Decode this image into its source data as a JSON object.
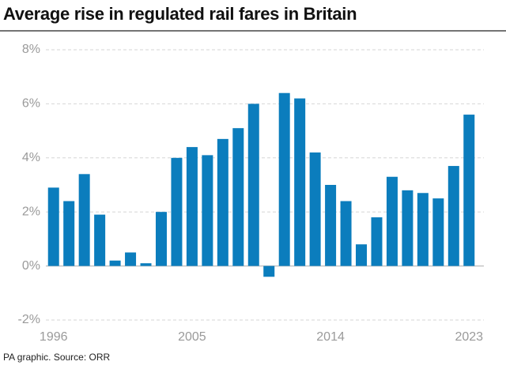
{
  "chart_data": {
    "type": "bar",
    "title": "Average rise in regulated rail fares in Britain",
    "source": "PA graphic. Source: ORR",
    "categories": [
      "1996",
      null,
      null,
      null,
      null,
      null,
      null,
      null,
      null,
      "2005",
      null,
      null,
      null,
      null,
      null,
      null,
      null,
      null,
      "2014",
      null,
      null,
      null,
      null,
      null,
      null,
      null,
      null,
      "2023"
    ],
    "values": [
      2.9,
      2.4,
      3.4,
      1.9,
      0.2,
      0.5,
      0.1,
      2.0,
      4.0,
      4.4,
      4.1,
      4.7,
      5.1,
      6.0,
      -0.4,
      6.4,
      6.2,
      4.2,
      3.0,
      2.4,
      0.8,
      1.8,
      3.3,
      2.8,
      2.7,
      2.5,
      3.7,
      5.6
    ],
    "color": "#0b7dbd",
    "ylim": [
      -2,
      8
    ],
    "yticks": [
      {
        "value": -2,
        "label": "-2%"
      },
      {
        "value": 0,
        "label": "0%"
      },
      {
        "value": 2,
        "label": "2%"
      },
      {
        "value": 4,
        "label": "4%"
      },
      {
        "value": 6,
        "label": "6%"
      },
      {
        "value": 8,
        "label": "8%"
      }
    ],
    "grid": true
  }
}
